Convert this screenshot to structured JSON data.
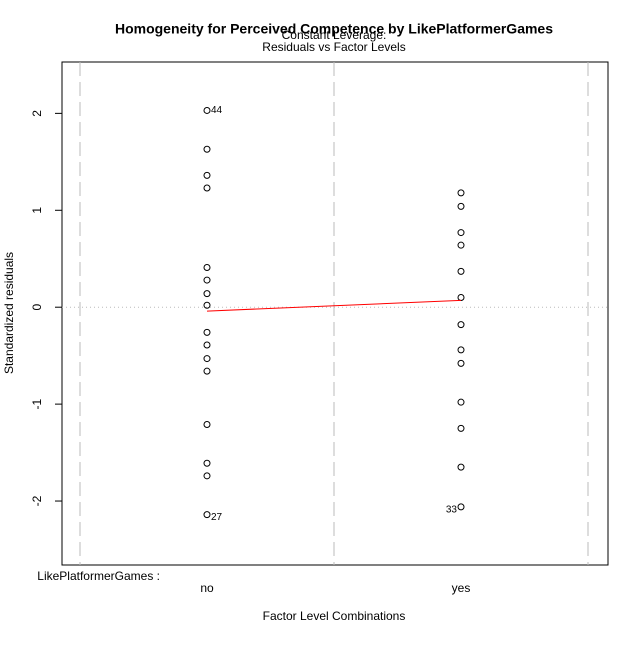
{
  "chart_data": {
    "type": "strip",
    "title": "Homogeneity for Perceived Competence by LikePlatformerGames",
    "subtitle_lines": [
      "Constant Leverage:",
      "Residuals vs Factor Levels"
    ],
    "x_label": "Factor Level Combinations",
    "y_label": "Standardized residuals",
    "factor_label": "LikePlatformerGames :",
    "categories": [
      "no",
      "yes"
    ],
    "values": [
      [
        2.03,
        1.63,
        1.36,
        1.23,
        0.41,
        0.28,
        0.14,
        0.02,
        -0.26,
        -0.39,
        -0.53,
        -0.66,
        -1.21,
        -1.61,
        -1.74,
        -2.14
      ],
      [
        1.18,
        1.04,
        0.77,
        0.64,
        0.37,
        0.1,
        -0.18,
        -0.44,
        -0.58,
        -0.98,
        -1.25,
        -1.65,
        -2.06
      ]
    ],
    "point_labels": [
      [
        "44",
        null,
        null,
        null,
        null,
        null,
        null,
        null,
        null,
        null,
        null,
        null,
        null,
        null,
        null,
        "27"
      ],
      [
        null,
        null,
        null,
        null,
        null,
        null,
        null,
        null,
        null,
        null,
        null,
        null,
        "33"
      ]
    ],
    "point_color": "#000000",
    "fit_values": [
      -0.04,
      0.07
    ],
    "fit_color": "#ff0000",
    "hline": 0,
    "ylim": [
      -2.66,
      2.53
    ],
    "yticks": [
      -2,
      -1,
      0,
      1,
      2
    ]
  }
}
